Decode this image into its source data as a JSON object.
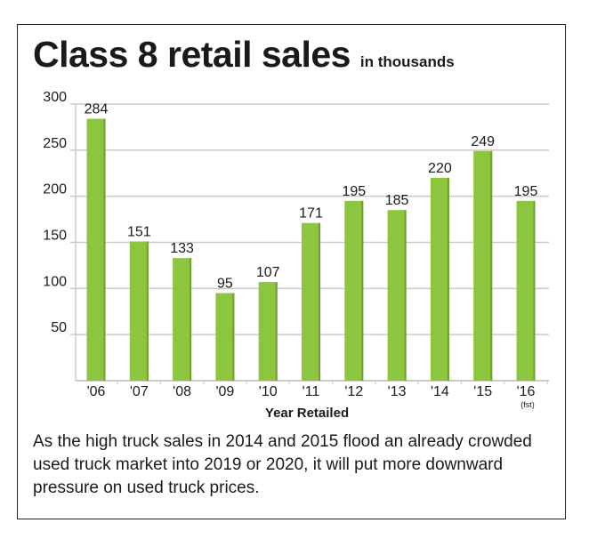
{
  "chart_data": {
    "type": "bar",
    "title": "Class 8 retail sales",
    "subtitle": "in thousands",
    "xlabel": "Year Retailed",
    "ylabel": "",
    "categories": [
      "'06",
      "'07",
      "'08",
      "'09",
      "'10",
      "'11",
      "'12",
      "'13",
      "'14",
      "'15",
      "'16"
    ],
    "category_notes": {
      "'16": "(fst)"
    },
    "values": [
      284,
      151,
      133,
      95,
      107,
      171,
      195,
      185,
      220,
      249,
      195
    ],
    "data_labels": [
      "284",
      "151",
      "133",
      "95",
      "107",
      "171",
      "195",
      "185",
      "220",
      "249",
      "195"
    ],
    "ylim": [
      0,
      300
    ],
    "yticks": [
      50,
      100,
      150,
      200,
      250,
      300
    ],
    "grid": true,
    "legend": "none",
    "bar_color": "#8cc63f"
  },
  "caption": "As the high truck sales in 2014 and 2015 flood an already crowded used truck market into 2019 or 2020, it will put more downward pressure on used truck prices."
}
